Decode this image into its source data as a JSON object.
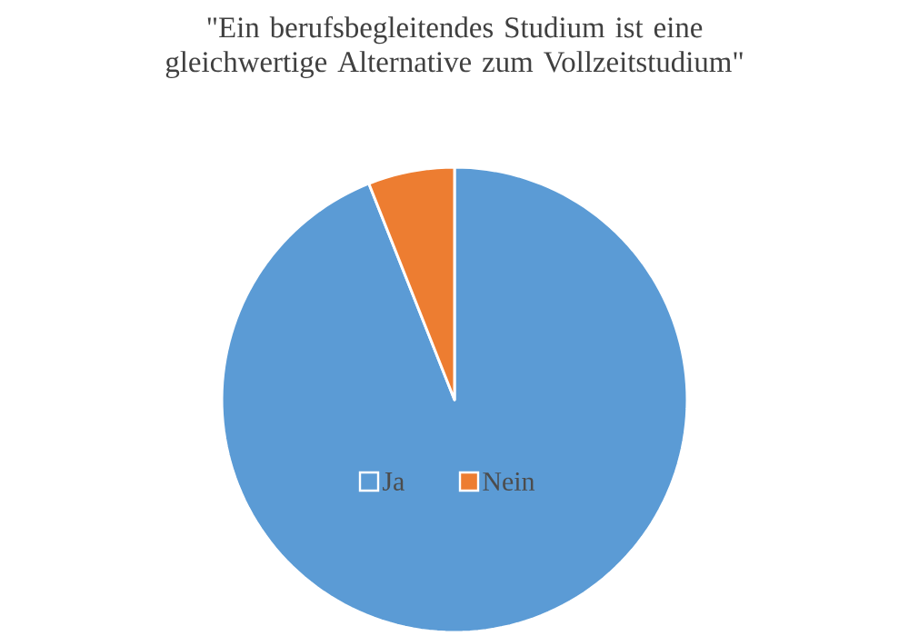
{
  "chart_data": {
    "type": "pie",
    "title": "\"Ein berufsbegleitendes Studium ist eine gleichwertige Alternative zum Vollzeitstudium\"",
    "categories": [
      "Ja",
      "Nein"
    ],
    "values": [
      94,
      6
    ],
    "colors": [
      "#5b9bd5",
      "#ed7d31"
    ],
    "legend": "bottom"
  }
}
